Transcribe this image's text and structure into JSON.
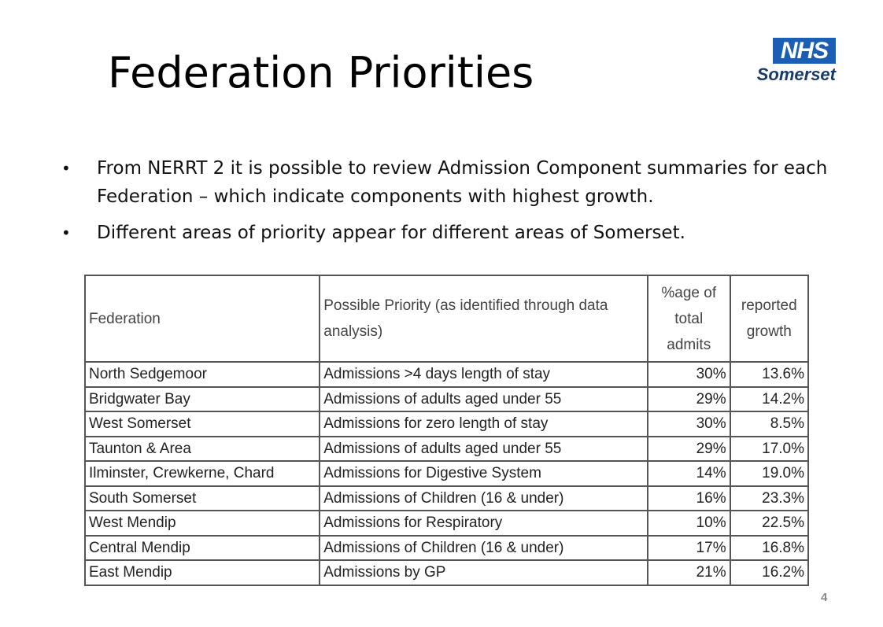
{
  "slide": {
    "title": "Federation Priorities",
    "page_number": "4"
  },
  "logo": {
    "nhs": "NHS",
    "region": "Somerset",
    "brand_color": "#1a5fb4"
  },
  "bullets": [
    "From NERRT 2 it is possible to review Admission Component summaries for each Federation – which indicate components with highest growth.",
    "Different areas of priority appear for different areas of Somerset."
  ],
  "table": {
    "headers": {
      "federation": "Federation",
      "priority": "Possible Priority (as identified through data analysis)",
      "pct": "%age of total admits",
      "growth": "reported growth"
    },
    "rows": [
      {
        "federation": "North Sedgemoor",
        "priority": "Admissions >4 days length of stay",
        "pct": "30%",
        "growth": "13.6%"
      },
      {
        "federation": "Bridgwater Bay",
        "priority": "Admissions of adults aged under 55",
        "pct": "29%",
        "growth": "14.2%"
      },
      {
        "federation": "West Somerset",
        "priority": "Admissions for zero length of stay",
        "pct": "30%",
        "growth": "8.5%"
      },
      {
        "federation": "Taunton & Area",
        "priority": "Admissions of adults aged under 55",
        "pct": "29%",
        "growth": "17.0%"
      },
      {
        "federation": "Ilminster, Crewkerne, Chard",
        "priority": "Admissions for Digestive System",
        "pct": "14%",
        "growth": "19.0%"
      },
      {
        "federation": "South Somerset",
        "priority": "Admissions of Children (16 & under)",
        "pct": "16%",
        "growth": "23.3%"
      },
      {
        "federation": "West Mendip",
        "priority": "Admissions for Respiratory",
        "pct": "10%",
        "growth": "22.5%"
      },
      {
        "federation": "Central Mendip",
        "priority": "Admissions of Children (16 & under)",
        "pct": "17%",
        "growth": "16.8%"
      },
      {
        "federation": "East Mendip",
        "priority": "Admissions by GP",
        "pct": "21%",
        "growth": "16.2%"
      }
    ]
  }
}
